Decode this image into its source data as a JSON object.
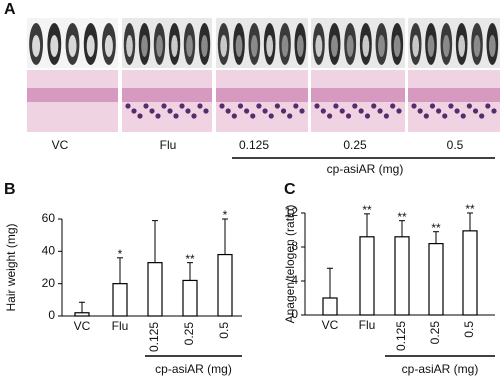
{
  "panel_a": {
    "panel_label": "A",
    "groups": [
      "VC",
      "Flu",
      "0.125",
      "0.25",
      "0.5"
    ],
    "group_label": "cp-asiAR (mg)"
  },
  "chart_data": [
    {
      "type": "bar",
      "panel_label": "B",
      "y_label": "Hair weight (mg)",
      "categories": [
        "VC",
        "Flu",
        "0.125",
        "0.25",
        "0.5"
      ],
      "values": [
        2,
        20,
        33,
        22,
        38
      ],
      "errors": [
        6.5,
        16,
        26,
        11,
        22
      ],
      "significance": [
        null,
        "*",
        null,
        "**",
        "*"
      ],
      "group_label": "cp-asiAR (mg)",
      "color": "#ffffff",
      "ylim": [
        0,
        60
      ],
      "yticks": [
        0,
        20,
        40,
        60
      ]
    },
    {
      "type": "bar",
      "panel_label": "C",
      "y_label": "Anagen/telogen (ratio)",
      "categories": [
        "VC",
        "Flu",
        "0.125",
        "0.25",
        "0.5"
      ],
      "values": [
        2,
        9.2,
        9.2,
        8.4,
        9.9
      ],
      "errors": [
        3.5,
        2.7,
        1.9,
        1.4,
        2.1
      ],
      "significance": [
        null,
        "**",
        "**",
        "**",
        "**"
      ],
      "group_label": "cp-asiAR (mg)",
      "color": "#ffffff",
      "ylim": [
        0,
        12
      ],
      "yticks": [
        0,
        4,
        8,
        12
      ]
    }
  ]
}
